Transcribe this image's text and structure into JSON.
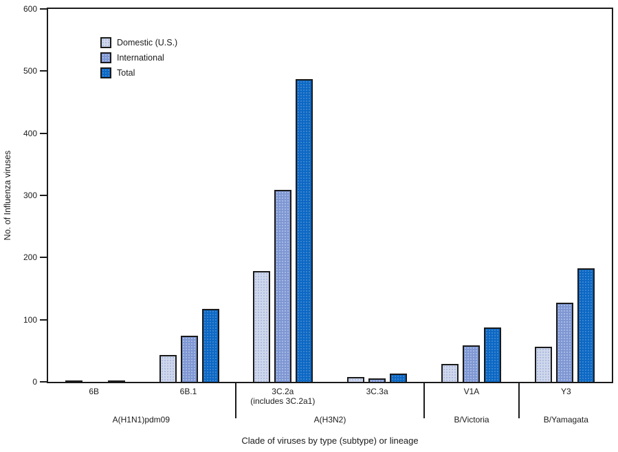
{
  "figure": {
    "y_axis_label": "No. of Influenza viruses",
    "x_axis_label": "Clade of viruses by type (subtype) or lineage"
  },
  "legend": {
    "items": [
      "Domestic (U.S.)",
      "International",
      "Total"
    ]
  },
  "colors": {
    "domestic": "#cfd7ec",
    "international": "#7e97d3",
    "total": "#0c68c4",
    "axis": "#1a1a1a"
  },
  "chart_data": {
    "type": "bar",
    "title": "",
    "xlabel": "Clade of viruses by type (subtype) or lineage",
    "ylabel": "No. of Influenza viruses",
    "ylim": [
      0,
      600
    ],
    "y_ticks": [
      0,
      100,
      200,
      300,
      400,
      500,
      600
    ],
    "grid": false,
    "legend_position": "top-left",
    "categories": [
      "6B",
      "6B.1",
      "3C.2a (includes 3C.2a1)",
      "3C.3a",
      "V1A",
      "Y3"
    ],
    "clade_labels": [
      {
        "line1": "6B",
        "line2": ""
      },
      {
        "line1": "6B.1",
        "line2": ""
      },
      {
        "line1": "3C.2a",
        "line2": "(includes 3C.2a1)"
      },
      {
        "line1": "3C.3a",
        "line2": ""
      },
      {
        "line1": "V1A",
        "line2": ""
      },
      {
        "line1": "Y3",
        "line2": ""
      }
    ],
    "type_groups": [
      {
        "label": "A(H1N1)pdm09",
        "span": 2
      },
      {
        "label": "A(H3N2)",
        "span": 2
      },
      {
        "label": "B/Victoria",
        "span": 1
      },
      {
        "label": "B/Yamagata",
        "span": 1
      }
    ],
    "series": [
      {
        "name": "Domestic (U.S.)",
        "color": "#cfd7ec",
        "values": [
          2,
          43,
          178,
          8,
          29,
          56
        ]
      },
      {
        "name": "International",
        "color": "#7e97d3",
        "values": [
          0,
          74,
          309,
          5,
          59,
          127
        ]
      },
      {
        "name": "Total",
        "color": "#0c68c4",
        "values": [
          2,
          117,
          487,
          13,
          88,
          183
        ]
      }
    ]
  }
}
